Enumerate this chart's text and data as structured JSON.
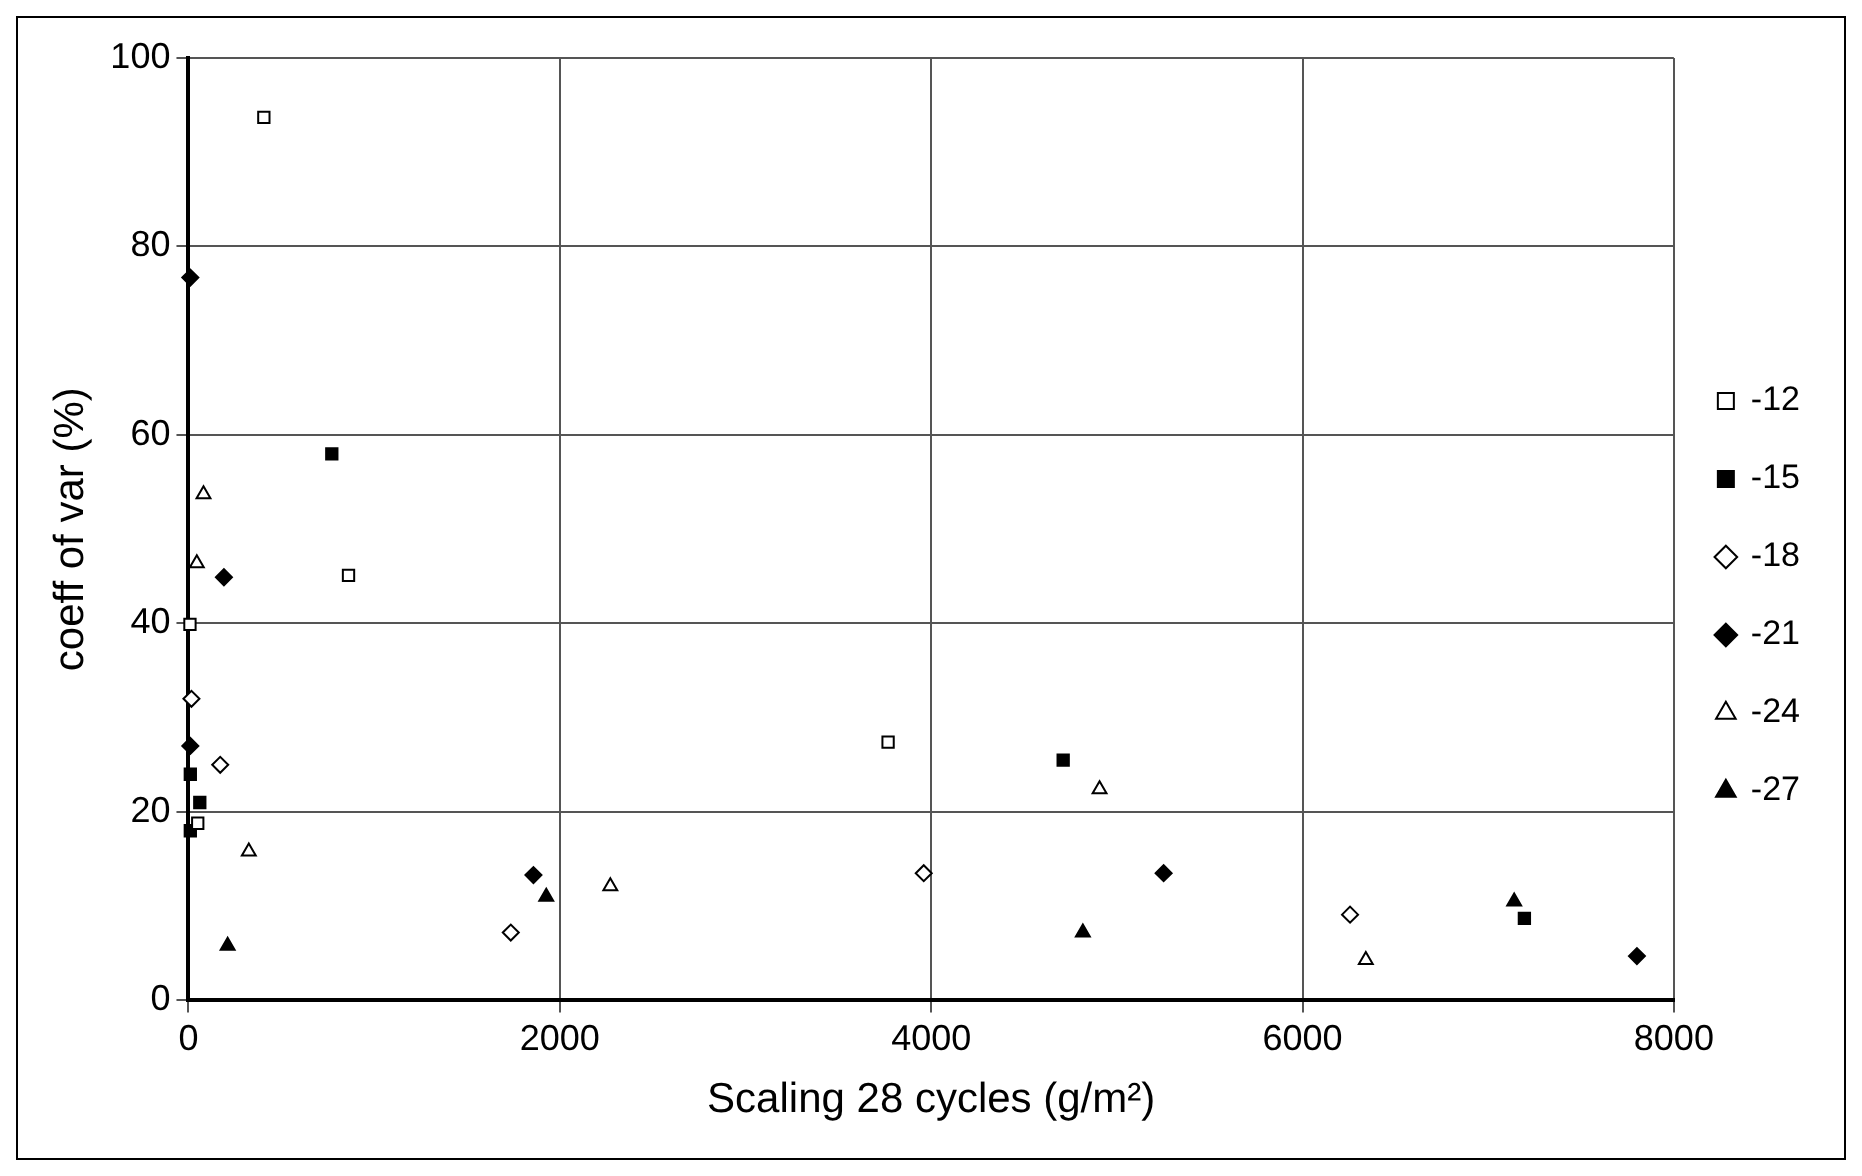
{
  "chart_data": {
    "type": "scatter",
    "xlabel": "Scaling 28 cycles (g/m²)",
    "ylabel": "coeff of var (%)",
    "xlim": [
      0,
      8000
    ],
    "xticks": [
      0,
      2000,
      4000,
      6000,
      8000
    ],
    "ylim": [
      0,
      100
    ],
    "yticks": [
      0,
      20,
      40,
      60,
      80,
      100
    ],
    "grid": true,
    "legend": "right",
    "series": [
      {
        "name": "-12",
        "color": "#ffffff",
        "marker": "square",
        "x": [
          406,
          862,
          8,
          50,
          3768
        ],
        "values": [
          93.7,
          45.1,
          39.9,
          18.8,
          27.4
        ]
      },
      {
        "name": "-15",
        "color": "#000000",
        "marker": "square",
        "x": [
          772,
          10,
          61,
          10,
          4711,
          7195
        ],
        "values": [
          58,
          24,
          21,
          18,
          25.5,
          8.7
        ]
      },
      {
        "name": "-18",
        "color": "#ffffff",
        "marker": "diamond",
        "x": [
          16,
          171,
          1736,
          3960,
          6256
        ],
        "values": [
          32,
          25,
          7.2,
          13.5,
          9.1
        ]
      },
      {
        "name": "-21",
        "color": "#000000",
        "marker": "diamond",
        "x": [
          10,
          191,
          10,
          1858,
          5252,
          7801
        ],
        "values": [
          76.7,
          44.9,
          27,
          13.3,
          13.5,
          4.7
        ]
      },
      {
        "name": "-24",
        "color": "#ffffff",
        "marker": "triangle",
        "x": [
          81,
          45,
          325,
          2272,
          4907,
          6341
        ],
        "values": [
          53.7,
          46.4,
          15.8,
          12.1,
          22.4,
          4.3
        ]
      },
      {
        "name": "-27",
        "color": "#000000",
        "marker": "triangle",
        "x": [
          211,
          1927,
          4817,
          7140
        ],
        "values": [
          5.8,
          11,
          7.2,
          10.5
        ]
      }
    ]
  }
}
